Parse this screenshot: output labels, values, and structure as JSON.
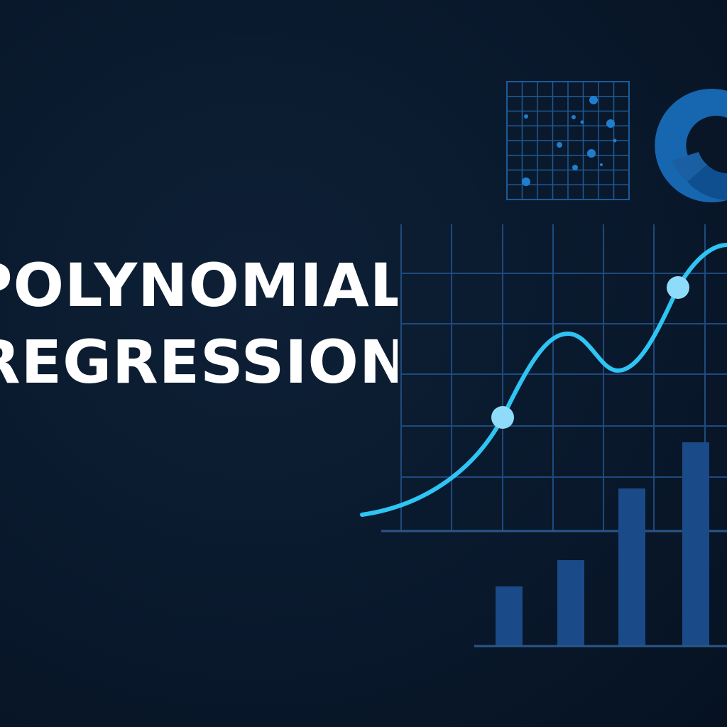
{
  "title": {
    "line1": "POLYNOMIAL",
    "line2": "REGRESSION"
  },
  "colors": {
    "background": "#0a1a2e",
    "title_text": "#ffffff",
    "curve": "#2ec4f4",
    "curve_point": "#8fdcfa",
    "grid": "#1e4a7e",
    "bars": "#1a4a88",
    "scatter_points": "#1f7fcf",
    "donut_main": "#1766b0",
    "donut_accent": "#0e4a86"
  },
  "decorations": {
    "scatter_panel_icon": "scatter-grid",
    "donut_icon": "donut-chart",
    "line_chart_icon": "polynomial-curve",
    "bar_chart_icon": "bar-chart"
  }
}
